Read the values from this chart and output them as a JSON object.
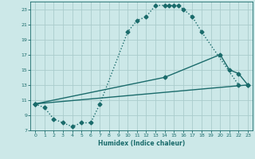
{
  "xlabel": "Humidex (Indice chaleur)",
  "ylabel": "",
  "bg_color": "#cce8e8",
  "line_color": "#1a6b6b",
  "grid_color": "#aacccc",
  "xlim": [
    -0.5,
    23.5
  ],
  "ylim": [
    7,
    24
  ],
  "yticks": [
    7,
    9,
    11,
    13,
    15,
    17,
    19,
    21,
    23
  ],
  "xticks": [
    0,
    1,
    2,
    3,
    4,
    5,
    6,
    7,
    8,
    9,
    10,
    11,
    12,
    13,
    14,
    15,
    16,
    17,
    18,
    19,
    20,
    21,
    22,
    23
  ],
  "line1_x": [
    0,
    1,
    2,
    3,
    4,
    5,
    6,
    7,
    10,
    11,
    12,
    13,
    14,
    14.5,
    15,
    15.5,
    16,
    17,
    18,
    22
  ],
  "line1_y": [
    10.5,
    10.0,
    8.5,
    8.0,
    7.5,
    8.0,
    8.0,
    10.5,
    20.0,
    21.5,
    22.0,
    23.5,
    23.5,
    23.5,
    23.5,
    23.5,
    23.0,
    22.0,
    20.0,
    13.0
  ],
  "line2_x": [
    0,
    14,
    20,
    21,
    22,
    23
  ],
  "line2_y": [
    10.5,
    14.0,
    17.0,
    15.0,
    14.5,
    13.0
  ],
  "line3_x": [
    0,
    23
  ],
  "line3_y": [
    10.5,
    13.0
  ],
  "marker": "D",
  "markersize": 2.5,
  "linewidth": 1.0
}
